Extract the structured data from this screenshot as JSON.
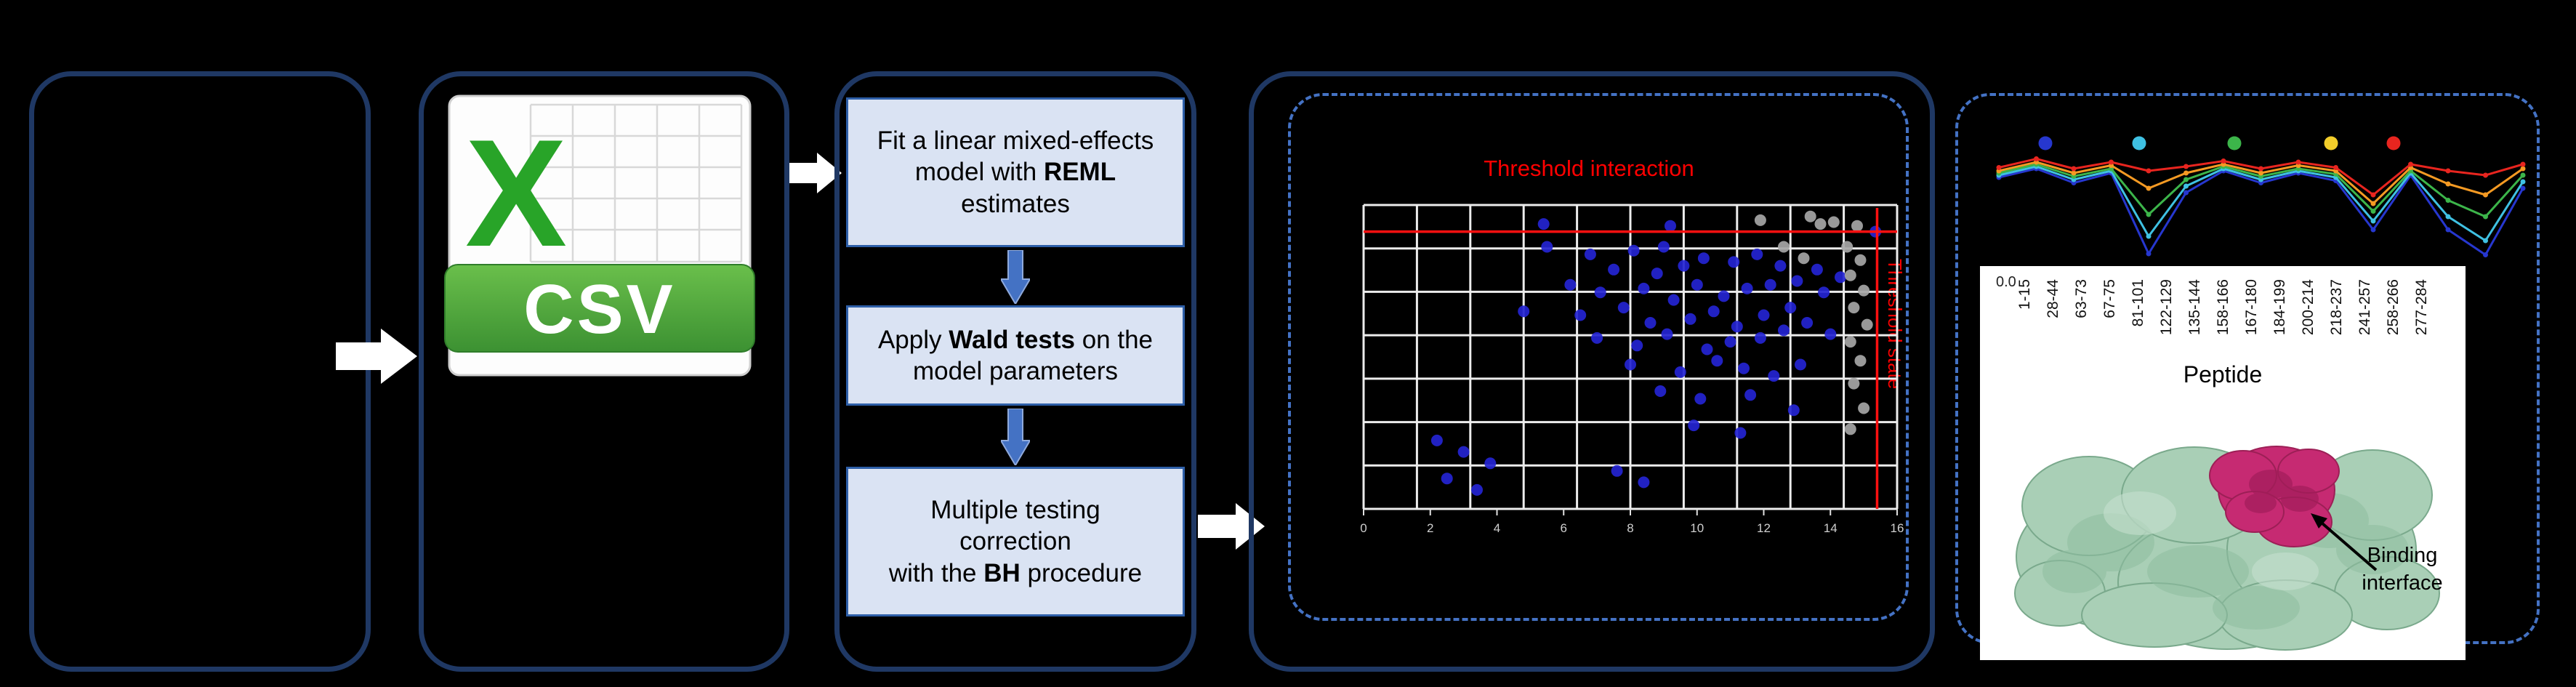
{
  "workflow": {
    "csv_icon": {
      "x_letter": "X",
      "label": "CSV"
    },
    "steps": [
      {
        "pre": "Fit a linear mixed-effects model with ",
        "bold": "REML",
        "post": " estimates"
      },
      {
        "pre": "Apply ",
        "bold": "Wald tests",
        "post": " on the model parameters"
      },
      {
        "pre": "Multiple testing\ncorrection\nwith the ",
        "bold": "BH",
        "post": " procedure"
      }
    ]
  },
  "chart_data": [
    {
      "type": "scatter",
      "title": "Threshold interaction",
      "title_color": "#ff0000",
      "x_threshold_label": "Threshold state",
      "xlabel": "",
      "ylabel": "",
      "xlim": [
        0,
        16
      ],
      "ylim": [
        0,
        8
      ],
      "x_ticks": [
        0,
        2,
        4,
        6,
        8,
        10,
        12,
        14,
        16
      ],
      "grid": true,
      "background": "#000000",
      "grid_color": "#ececec",
      "threshold_horizontal_y": 7.3,
      "threshold_vertical_x": 15.4,
      "threshold_color": "#ff1010",
      "series": [
        {
          "name": "blue-points",
          "color": "#2424d2",
          "points": [
            [
              5.5,
              6.9
            ],
            [
              6.8,
              6.7
            ],
            [
              8.1,
              6.8
            ],
            [
              9.0,
              6.9
            ],
            [
              10.2,
              6.6
            ],
            [
              7.5,
              6.3
            ],
            [
              8.8,
              6.2
            ],
            [
              9.6,
              6.4
            ],
            [
              11.1,
              6.5
            ],
            [
              11.8,
              6.7
            ],
            [
              12.5,
              6.4
            ],
            [
              6.2,
              5.9
            ],
            [
              7.1,
              5.7
            ],
            [
              8.4,
              5.8
            ],
            [
              9.3,
              5.5
            ],
            [
              10.0,
              5.9
            ],
            [
              10.8,
              5.6
            ],
            [
              11.5,
              5.8
            ],
            [
              12.2,
              5.9
            ],
            [
              13.0,
              6.0
            ],
            [
              13.6,
              6.3
            ],
            [
              4.8,
              5.2
            ],
            [
              6.5,
              5.1
            ],
            [
              7.8,
              5.3
            ],
            [
              8.6,
              4.9
            ],
            [
              9.8,
              5.0
            ],
            [
              10.5,
              5.2
            ],
            [
              11.2,
              4.8
            ],
            [
              12.0,
              5.1
            ],
            [
              12.8,
              5.3
            ],
            [
              7.0,
              4.5
            ],
            [
              8.2,
              4.3
            ],
            [
              9.1,
              4.6
            ],
            [
              10.3,
              4.2
            ],
            [
              11.0,
              4.4
            ],
            [
              11.9,
              4.5
            ],
            [
              12.6,
              4.7
            ],
            [
              13.3,
              4.9
            ],
            [
              8.0,
              3.8
            ],
            [
              9.5,
              3.6
            ],
            [
              10.6,
              3.9
            ],
            [
              11.4,
              3.7
            ],
            [
              12.3,
              3.5
            ],
            [
              13.1,
              3.8
            ],
            [
              8.9,
              3.1
            ],
            [
              10.1,
              2.9
            ],
            [
              11.6,
              3.0
            ],
            [
              12.9,
              2.6
            ],
            [
              9.9,
              2.2
            ],
            [
              11.3,
              2.0
            ],
            [
              2.2,
              1.8
            ],
            [
              3.0,
              1.5
            ],
            [
              3.8,
              1.2
            ],
            [
              2.5,
              0.8
            ],
            [
              3.4,
              0.5
            ],
            [
              7.6,
              1.0
            ],
            [
              8.4,
              0.7
            ],
            [
              13.8,
              5.7
            ],
            [
              14.3,
              6.1
            ],
            [
              14.0,
              4.6
            ],
            [
              15.35,
              7.3
            ],
            [
              5.4,
              7.5
            ],
            [
              9.2,
              7.45
            ]
          ]
        },
        {
          "name": "grey-points",
          "color": "#a6a6a6",
          "points": [
            [
              14.5,
              6.9
            ],
            [
              14.9,
              6.55
            ],
            [
              14.6,
              6.15
            ],
            [
              15.0,
              5.75
            ],
            [
              14.7,
              5.3
            ],
            [
              15.1,
              4.85
            ],
            [
              14.6,
              4.4
            ],
            [
              14.9,
              3.9
            ],
            [
              14.7,
              3.3
            ],
            [
              15.0,
              2.65
            ],
            [
              14.6,
              2.1
            ],
            [
              14.1,
              7.55
            ],
            [
              13.4,
              7.7
            ],
            [
              14.8,
              7.45
            ],
            [
              13.7,
              7.5
            ],
            [
              11.9,
              7.6
            ],
            [
              12.6,
              6.9
            ],
            [
              13.2,
              6.6
            ]
          ]
        }
      ]
    },
    {
      "type": "line",
      "categories": [
        "1-15",
        "28-44",
        "63-73",
        "67-75",
        "81-101",
        "122-129",
        "135-144",
        "158-166",
        "167-180",
        "184-199",
        "200-214",
        "218-237",
        "241-257",
        "258-266",
        "277-284"
      ],
      "xlabel": "Peptide",
      "ytick_labels": [
        "0.0"
      ],
      "ylim": [
        0,
        1
      ],
      "legend_marker_colors": [
        "#2637cf",
        "#3fc1e3",
        "#3cb54a",
        "#f2cd2a",
        "#e8251f"
      ],
      "series": [
        {
          "name": "dark-blue",
          "color": "#2637cf",
          "values": [
            0.76,
            0.84,
            0.71,
            0.8,
            0.06,
            0.62,
            0.82,
            0.71,
            0.8,
            0.73,
            0.28,
            0.78,
            0.28,
            0.05,
            0.66
          ]
        },
        {
          "name": "light-blue",
          "color": "#3fc1e3",
          "values": [
            0.78,
            0.86,
            0.74,
            0.82,
            0.22,
            0.68,
            0.84,
            0.74,
            0.82,
            0.76,
            0.36,
            0.8,
            0.4,
            0.18,
            0.72
          ]
        },
        {
          "name": "green",
          "color": "#3cb54a",
          "values": [
            0.8,
            0.88,
            0.77,
            0.84,
            0.42,
            0.74,
            0.86,
            0.77,
            0.84,
            0.79,
            0.45,
            0.82,
            0.55,
            0.4,
            0.78
          ]
        },
        {
          "name": "orange",
          "color": "#f59a23",
          "values": [
            0.82,
            0.9,
            0.8,
            0.87,
            0.66,
            0.8,
            0.88,
            0.8,
            0.87,
            0.82,
            0.52,
            0.85,
            0.7,
            0.6,
            0.84
          ]
        },
        {
          "name": "red",
          "color": "#e8251f",
          "values": [
            0.85,
            0.93,
            0.84,
            0.9,
            0.82,
            0.86,
            0.91,
            0.84,
            0.9,
            0.85,
            0.6,
            0.88,
            0.82,
            0.78,
            0.88
          ]
        }
      ]
    }
  ],
  "structure": {
    "annotation_lines": [
      "Binding",
      "interface"
    ]
  },
  "colors": {
    "panel_border": "#1f3864",
    "dashed_border": "#4472c4",
    "step_fill": "#dae3f3",
    "step_border": "#2e5fa8",
    "arrow_white": "#ffffff",
    "arrow_blue": "#4472c4",
    "threshold_red": "#ff1010",
    "csv_green": "#3c9132",
    "protein_green": "#a9cfb6",
    "protein_magenta": "#c62a72"
  }
}
